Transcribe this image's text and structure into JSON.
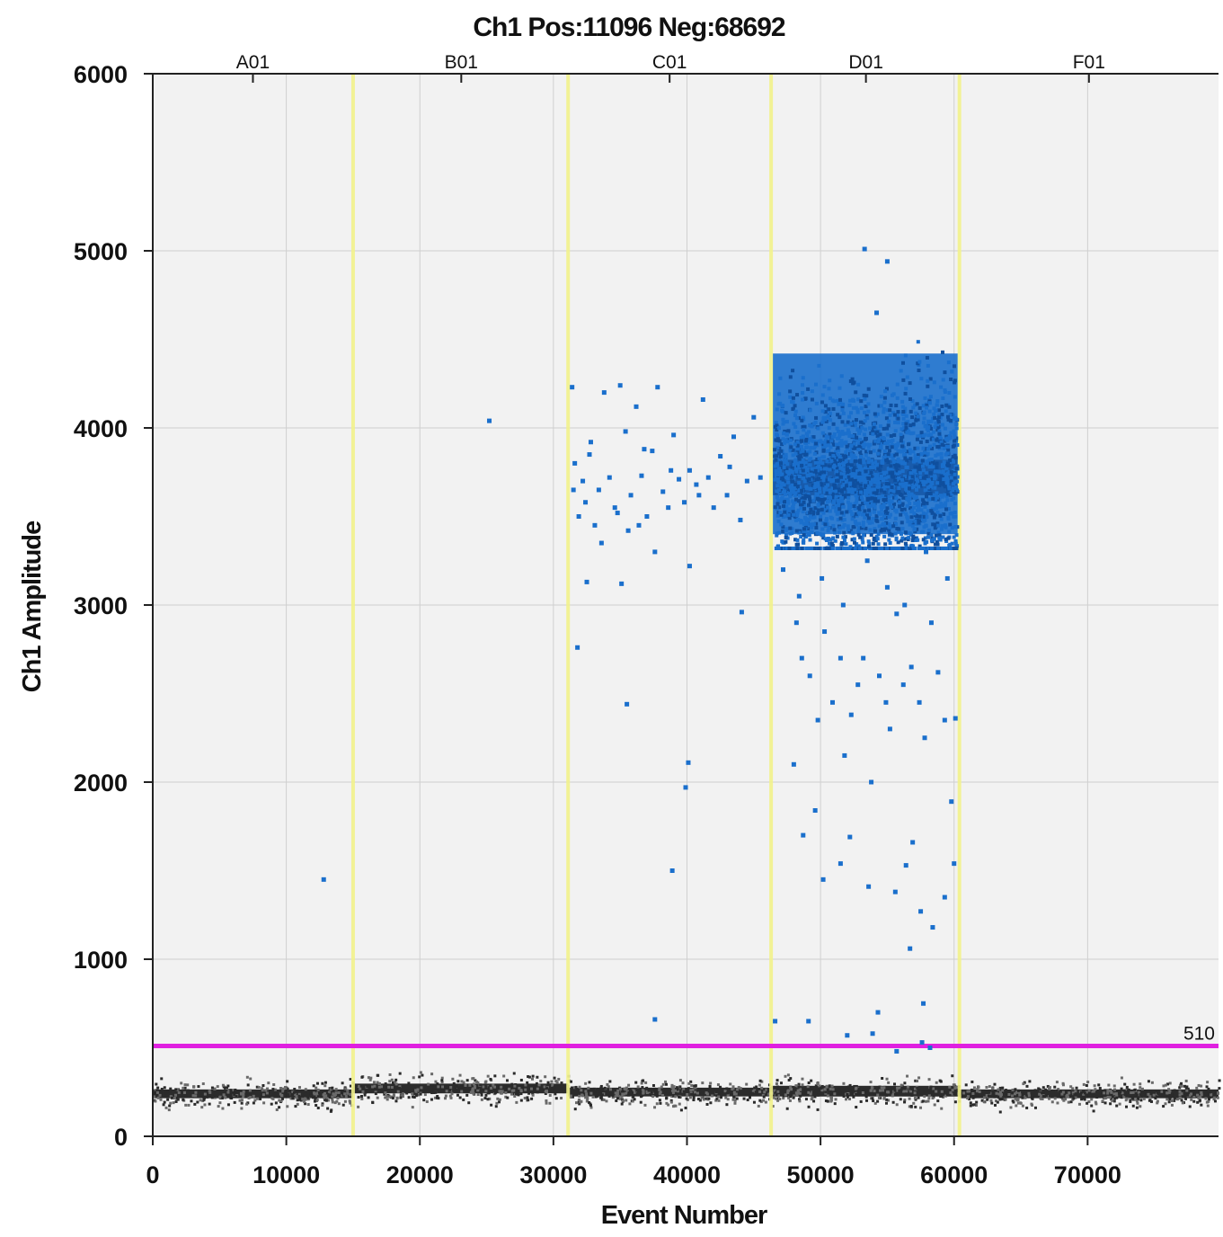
{
  "chart_data": {
    "type": "scatter",
    "title": "Ch1 Pos:11096 Neg:68692",
    "xlabel": "Event Number",
    "ylabel": "Ch1 Amplitude",
    "xlim": [
      0,
      79800
    ],
    "ylim": [
      0,
      6000
    ],
    "x_ticks": [
      0,
      10000,
      20000,
      30000,
      40000,
      50000,
      60000,
      70000
    ],
    "y_ticks": [
      0,
      1000,
      2000,
      3000,
      4000,
      5000,
      6000
    ],
    "grid": true,
    "threshold": {
      "value": 510,
      "label": "510",
      "color": "#e020e0"
    },
    "well_boundaries": [
      15000,
      31100,
      46300,
      60400
    ],
    "wells": [
      {
        "label": "A01",
        "x": 7500
      },
      {
        "label": "B01",
        "x": 23100
      },
      {
        "label": "C01",
        "x": 38700
      },
      {
        "label": "D01",
        "x": 53400
      },
      {
        "label": "F01",
        "x": 70100
      }
    ],
    "colors": {
      "positive": "#1a6fcc",
      "negative": "#222222",
      "boundary": "#f2f28c",
      "background": "#f2f2f2",
      "grid": "#cfcfcf"
    },
    "series": [
      {
        "name": "Positive",
        "color": "#1a6fcc",
        "points": [
          [
            12800,
            1450
          ],
          [
            25200,
            4040
          ],
          [
            31400,
            4230
          ],
          [
            31600,
            3800
          ],
          [
            31500,
            3650
          ],
          [
            31900,
            3500
          ],
          [
            32200,
            3700
          ],
          [
            32400,
            3580
          ],
          [
            32700,
            3850
          ],
          [
            33100,
            3450
          ],
          [
            33400,
            3650
          ],
          [
            33800,
            4200
          ],
          [
            34200,
            3720
          ],
          [
            34600,
            3550
          ],
          [
            35000,
            4240
          ],
          [
            35400,
            3980
          ],
          [
            35800,
            3620
          ],
          [
            36200,
            4120
          ],
          [
            36600,
            3730
          ],
          [
            37000,
            3500
          ],
          [
            37400,
            3870
          ],
          [
            37800,
            4230
          ],
          [
            38200,
            3640
          ],
          [
            38600,
            3550
          ],
          [
            39000,
            3960
          ],
          [
            39400,
            3710
          ],
          [
            39800,
            3580
          ],
          [
            40200,
            3760
          ],
          [
            40700,
            3680
          ],
          [
            41200,
            4160
          ],
          [
            41600,
            3720
          ],
          [
            42000,
            3550
          ],
          [
            42500,
            3840
          ],
          [
            43000,
            3620
          ],
          [
            43500,
            3950
          ],
          [
            44000,
            3480
          ],
          [
            44500,
            3700
          ],
          [
            45000,
            4060
          ],
          [
            45500,
            3720
          ],
          [
            32800,
            3920
          ],
          [
            34800,
            3520
          ],
          [
            36800,
            3880
          ],
          [
            38800,
            3760
          ],
          [
            40900,
            3620
          ],
          [
            43200,
            3780
          ],
          [
            33600,
            3350
          ],
          [
            35600,
            3420
          ],
          [
            37600,
            3300
          ],
          [
            31800,
            2760
          ],
          [
            35500,
            2440
          ],
          [
            40100,
            2110
          ],
          [
            39900,
            1970
          ],
          [
            38900,
            1500
          ],
          [
            37600,
            660
          ],
          [
            40200,
            3220
          ],
          [
            44100,
            2960
          ],
          [
            32500,
            3130
          ],
          [
            35100,
            3120
          ],
          [
            36400,
            3450
          ],
          [
            48200,
            2900
          ],
          [
            48600,
            2700
          ],
          [
            49200,
            2600
          ],
          [
            49800,
            2350
          ],
          [
            50300,
            2850
          ],
          [
            50900,
            2450
          ],
          [
            51500,
            2700
          ],
          [
            51800,
            2150
          ],
          [
            52300,
            2380
          ],
          [
            52800,
            2550
          ],
          [
            53200,
            2700
          ],
          [
            53800,
            2000
          ],
          [
            54400,
            2600
          ],
          [
            54900,
            2450
          ],
          [
            55200,
            2300
          ],
          [
            55700,
            2950
          ],
          [
            56200,
            2550
          ],
          [
            56800,
            2650
          ],
          [
            57400,
            2450
          ],
          [
            57800,
            2250
          ],
          [
            58300,
            2900
          ],
          [
            58800,
            2620
          ],
          [
            59300,
            2350
          ],
          [
            59800,
            1890
          ],
          [
            60100,
            2360
          ],
          [
            48000,
            2100
          ],
          [
            48700,
            1700
          ],
          [
            49600,
            1840
          ],
          [
            50200,
            1450
          ],
          [
            51500,
            1540
          ],
          [
            52200,
            1690
          ],
          [
            53600,
            1410
          ],
          [
            55600,
            1380
          ],
          [
            56400,
            1530
          ],
          [
            56900,
            1660
          ],
          [
            57500,
            1270
          ],
          [
            58400,
            1180
          ],
          [
            59300,
            1350
          ],
          [
            60000,
            1540
          ],
          [
            56700,
            1060
          ],
          [
            57700,
            750
          ],
          [
            54300,
            700
          ],
          [
            52000,
            570
          ],
          [
            53900,
            580
          ],
          [
            49100,
            650
          ],
          [
            46600,
            650
          ],
          [
            55700,
            480
          ],
          [
            57600,
            530
          ],
          [
            58200,
            500
          ],
          [
            47200,
            3200
          ],
          [
            48400,
            3050
          ],
          [
            50100,
            3150
          ],
          [
            51700,
            3000
          ],
          [
            53500,
            3250
          ],
          [
            55000,
            3100
          ],
          [
            56300,
            3000
          ],
          [
            57900,
            3300
          ],
          [
            59500,
            3150
          ],
          [
            53300,
            5010
          ],
          [
            55000,
            4940
          ],
          [
            54200,
            4650
          ]
        ]
      },
      {
        "name": "Negative",
        "color": "#222222",
        "bands": [
          {
            "x_from": 0,
            "x_to": 15000,
            "y_center": 240,
            "spread": 45
          },
          {
            "x_from": 15000,
            "x_to": 31100,
            "y_center": 270,
            "spread": 50
          },
          {
            "x_from": 31100,
            "x_to": 46300,
            "y_center": 250,
            "spread": 45
          },
          {
            "x_from": 46300,
            "x_to": 60400,
            "y_center": 255,
            "spread": 55
          },
          {
            "x_from": 60400,
            "x_to": 79800,
            "y_center": 240,
            "spread": 45
          }
        ]
      }
    ],
    "positive_clusters": [
      {
        "x_from": 46300,
        "x_to": 60400,
        "y_center": 3720,
        "y_min": 3350,
        "y_max": 4550
      }
    ]
  }
}
